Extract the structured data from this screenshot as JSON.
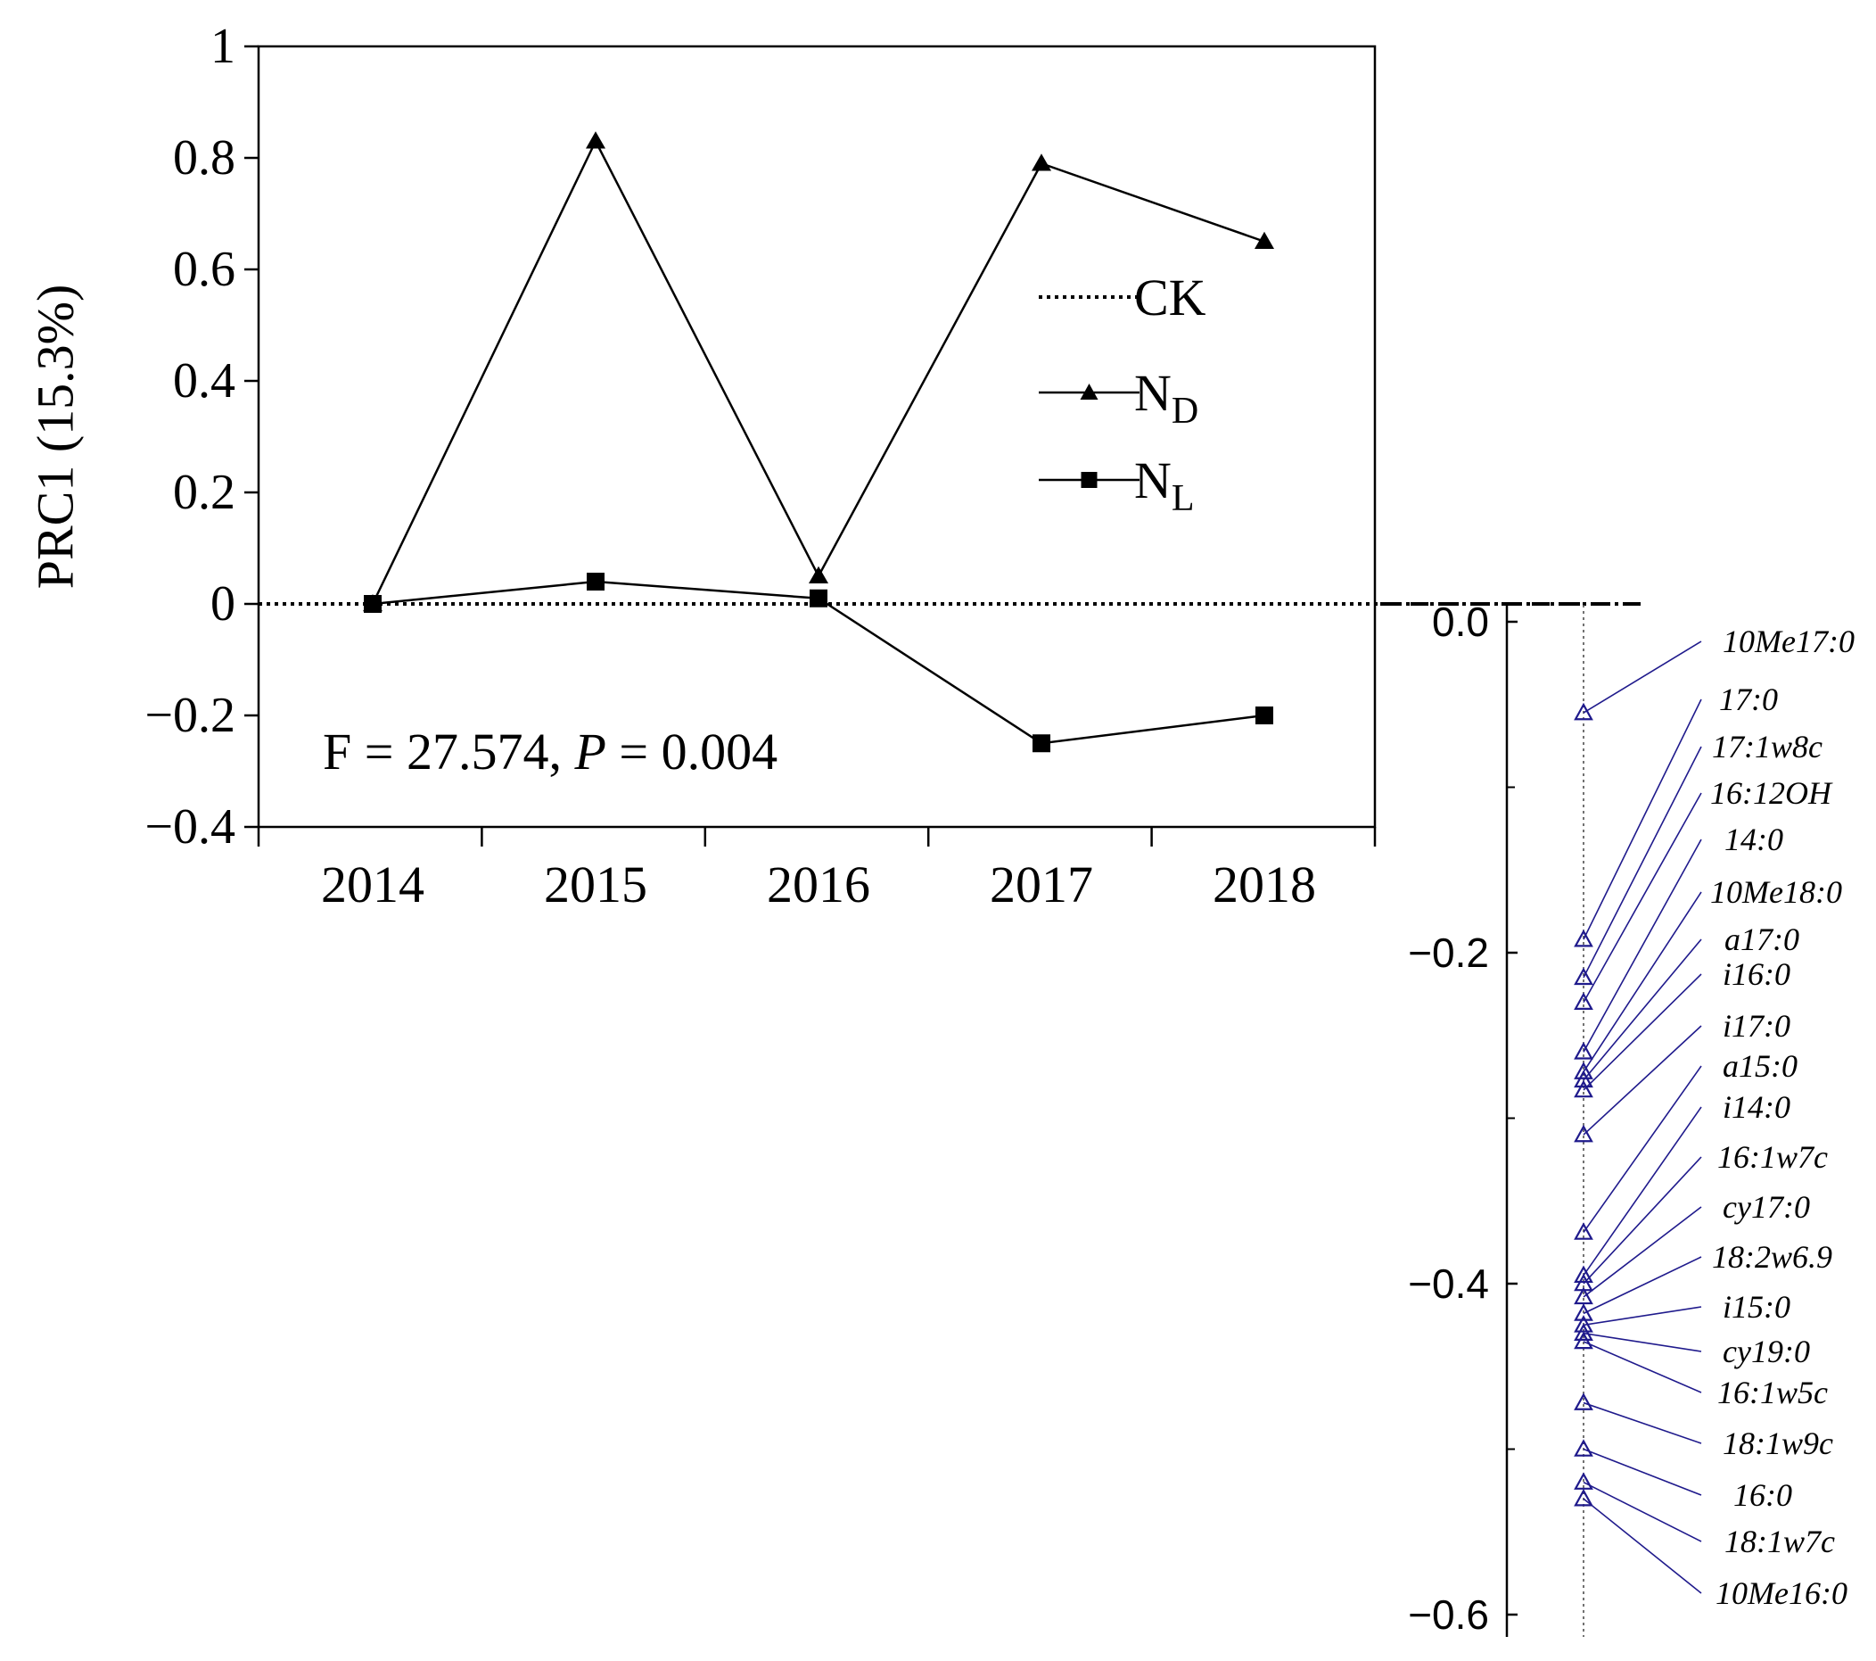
{
  "chart_data": [
    {
      "type": "line",
      "ylabel": "PRC1 (15.3%)",
      "categories": [
        "2014",
        "2015",
        "2016",
        "2017",
        "2018"
      ],
      "ylim": [
        -0.4,
        1
      ],
      "yticks": [
        "1",
        "0.8",
        "0.6",
        "0.4",
        "0.2",
        "0",
        "−0.2",
        "−0.4"
      ],
      "ytick_values": [
        1,
        0.8,
        0.6,
        0.4,
        0.2,
        0,
        -0.2,
        -0.4
      ],
      "series": [
        {
          "name": "CK",
          "sub": "",
          "marker": "none",
          "dash": true,
          "values": [
            0,
            0,
            0,
            0,
            0
          ]
        },
        {
          "name": "N",
          "sub": "D",
          "marker": "triangle",
          "dash": false,
          "values": [
            0,
            0.83,
            0.05,
            0.79,
            0.65
          ]
        },
        {
          "name": "N",
          "sub": "L",
          "marker": "square",
          "dash": false,
          "values": [
            0,
            0.04,
            0.01,
            -0.25,
            -0.2
          ]
        }
      ],
      "legend_position": "right",
      "annotation": {
        "prefix": "F = 27.574, ",
        "italic": "P",
        "suffix": " = 0.004"
      }
    },
    {
      "type": "scatter",
      "ylim": [
        -0.6,
        0
      ],
      "yticks": [
        "0.0",
        "−0.2",
        "−0.4",
        "−0.6"
      ],
      "ytick_values": [
        0,
        -0.2,
        -0.4,
        -0.6
      ],
      "color": "#1f1a8c",
      "points": [
        {
          "label": "10Me17:0",
          "value": -0.055
        },
        {
          "label": "17:0",
          "value": -0.192
        },
        {
          "label": "17:1w8c",
          "value": -0.215
        },
        {
          "label": "16:12OH",
          "value": -0.23
        },
        {
          "label": "14:0",
          "value": -0.26
        },
        {
          "label": "10Me18:0",
          "value": -0.272
        },
        {
          "label": "a17:0",
          "value": -0.277
        },
        {
          "label": "i16:0",
          "value": -0.283
        },
        {
          "label": "i17:0",
          "value": -0.31
        },
        {
          "label": "a15:0",
          "value": -0.369
        },
        {
          "label": "i14:0",
          "value": -0.395
        },
        {
          "label": "16:1w7c",
          "value": -0.4
        },
        {
          "label": "cy17:0",
          "value": -0.408
        },
        {
          "label": "18:2w6.9",
          "value": -0.418
        },
        {
          "label": "i15:0",
          "value": -0.425
        },
        {
          "label": "cy19:0",
          "value": -0.43
        },
        {
          "label": "16:1w5c",
          "value": -0.435
        },
        {
          "label": "18:1w9c",
          "value": -0.472
        },
        {
          "label": "16:0",
          "value": -0.5
        },
        {
          "label": "18:1w7c",
          "value": -0.52
        },
        {
          "label": "10Me16:0",
          "value": -0.53
        }
      ]
    }
  ]
}
